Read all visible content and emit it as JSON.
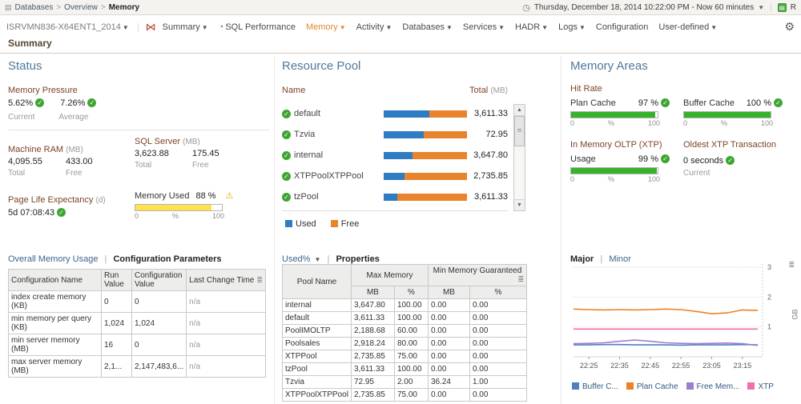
{
  "breadcrumb": {
    "items": [
      "Databases",
      "Overview",
      "Memory"
    ]
  },
  "topbar": {
    "time_range": "Thursday, December 18, 2014 10:22:00 PM - Now 60 minutes",
    "reports_label": "R"
  },
  "nav": {
    "server_selector": "ISRVMN836-X64ENT1_2014",
    "items": [
      {
        "label": "Summary"
      },
      {
        "label": "SQL Performance"
      },
      {
        "label": "Memory"
      },
      {
        "label": "Activity"
      },
      {
        "label": "Databases"
      },
      {
        "label": "Services"
      },
      {
        "label": "HADR"
      },
      {
        "label": "Logs"
      },
      {
        "label": "Configuration"
      },
      {
        "label": "User-defined"
      }
    ]
  },
  "page": {
    "title": "Summary"
  },
  "percent_scale": {
    "min": "0",
    "mid": "%",
    "max": "100"
  },
  "status": {
    "title": "Status",
    "memory_pressure": {
      "label": "Memory Pressure",
      "current_value": "5.62%",
      "average_value": "7.26%",
      "current_label": "Current",
      "average_label": "Average"
    },
    "machine_ram": {
      "label": "Machine RAM",
      "unit": "(MB)",
      "total": "4,095.55",
      "free": "433.00",
      "total_label": "Total",
      "free_label": "Free"
    },
    "sql_server": {
      "label": "SQL Server",
      "unit": "(MB)",
      "total": "3,623.88",
      "free": "175.45",
      "total_label": "Total",
      "free_label": "Free"
    },
    "memory_used": {
      "label": "Memory Used",
      "value": "88 %",
      "percent": 88
    },
    "page_life_expectancy": {
      "label": "Page Life Expectancy",
      "unit": "(d)",
      "value": "5d 07:08:43"
    },
    "view_links": {
      "overall": "Overall Memory Usage",
      "config": "Configuration Parameters"
    },
    "config_table": {
      "headers": [
        "Configuration Name",
        "Run Value",
        "Configuration Value",
        "Last Change Time"
      ],
      "rows": [
        [
          "index create memory (KB)",
          "0",
          "0",
          "n/a"
        ],
        [
          "min memory per query (KB)",
          "1,024",
          "1,024",
          "n/a"
        ],
        [
          "min server memory (MB)",
          "16",
          "0",
          "n/a"
        ],
        [
          "max server memory (MB)",
          "2,1...",
          "2,147,483,6...",
          "n/a"
        ]
      ]
    }
  },
  "resource_pool": {
    "title": "Resource Pool",
    "name_header": "Name",
    "total_header": "Total",
    "total_unit": "(MB)",
    "pools": [
      {
        "name": "default",
        "total": "3,611.33",
        "used_pct": 55,
        "free_pct": 45
      },
      {
        "name": "Tzvia",
        "total": "72.95",
        "used_pct": 48,
        "free_pct": 52
      },
      {
        "name": "internal",
        "total": "3,647.80",
        "used_pct": 35,
        "free_pct": 65
      },
      {
        "name": "XTPPoolXTPPool",
        "total": "2,735.85",
        "used_pct": 25,
        "free_pct": 75
      },
      {
        "name": "tzPool",
        "total": "3,611.33",
        "used_pct": 16,
        "free_pct": 84
      }
    ],
    "legend": {
      "used": "Used",
      "free": "Free"
    },
    "view_links": {
      "used": "Used%",
      "properties": "Properties"
    },
    "properties_table": {
      "pool_name_header": "Pool Name",
      "max_memory_header": "Max Memory",
      "min_memory_header": "Min Memory Guaranteed",
      "sub_headers": [
        "MB",
        "%",
        "MB",
        "%"
      ],
      "rows": [
        [
          "internal",
          "3,647.80",
          "100.00",
          "0.00",
          "0.00"
        ],
        [
          "default",
          "3,611.33",
          "100.00",
          "0.00",
          "0.00"
        ],
        [
          "PoolIMOLTP",
          "2,188.68",
          "60.00",
          "0.00",
          "0.00"
        ],
        [
          "Poolsales",
          "2,918.24",
          "80.00",
          "0.00",
          "0.00"
        ],
        [
          "XTPPool",
          "2,735.85",
          "75.00",
          "0.00",
          "0.00"
        ],
        [
          "tzPool",
          "3,611.33",
          "100.00",
          "0.00",
          "0.00"
        ],
        [
          "Tzvia",
          "72.95",
          "2.00",
          "36.24",
          "1.00"
        ],
        [
          "XTPPoolXTPPool",
          "2,735.85",
          "75.00",
          "0.00",
          "0.00"
        ]
      ]
    }
  },
  "memory_areas": {
    "title": "Memory Areas",
    "hit_rate": {
      "label": "Hit Rate",
      "plan_cache": {
        "label": "Plan Cache",
        "value": "97 %",
        "percent": 97
      },
      "buffer_cache": {
        "label": "Buffer Cache",
        "value": "100 %",
        "percent": 100
      }
    },
    "xtp": {
      "label": "In Memory OLTP (XTP)",
      "usage_label": "Usage",
      "usage_value": "99 %",
      "usage_percent": 99
    },
    "oldest_xtp": {
      "label": "Oldest XTP Transaction",
      "value": "0 seconds",
      "sub_label": "Current"
    },
    "view_links": {
      "major": "Major",
      "minor": "Minor"
    }
  },
  "chart_data": {
    "type": "line",
    "title": "",
    "xlabel": "",
    "ylabel": "GB",
    "ylim": [
      0,
      3
    ],
    "y_ticks": [
      1,
      2,
      3
    ],
    "x_ticks": [
      "22:25",
      "22:35",
      "22:45",
      "22:55",
      "23:05",
      "23:15"
    ],
    "x_tick_indices": [
      1,
      3,
      5,
      7,
      9,
      11
    ],
    "grid": true,
    "legend_position": "bottom",
    "series": [
      {
        "name": "Buffer C...",
        "color": "#4f81bd",
        "values": [
          0.4,
          0.4,
          0.41,
          0.41,
          0.4,
          0.4,
          0.4,
          0.39,
          0.4,
          0.4,
          0.4,
          0.41,
          0.4
        ]
      },
      {
        "name": "Plan Cache",
        "color": "#ed8125",
        "values": [
          1.6,
          1.58,
          1.57,
          1.58,
          1.57,
          1.58,
          1.6,
          1.58,
          1.52,
          1.44,
          1.47,
          1.57,
          1.55
        ]
      },
      {
        "name": "Free Mem...",
        "color": "#9b7fd4",
        "values": [
          0.44,
          0.45,
          0.47,
          0.52,
          0.56,
          0.52,
          0.47,
          0.45,
          0.44,
          0.45,
          0.46,
          0.44,
          0.38
        ]
      },
      {
        "name": "XTP",
        "color": "#f06eaa",
        "values": [
          0.93,
          0.93,
          0.93,
          0.93,
          0.93,
          0.93,
          0.93,
          0.93,
          0.93,
          0.93,
          0.93,
          0.93,
          0.93
        ]
      }
    ]
  }
}
